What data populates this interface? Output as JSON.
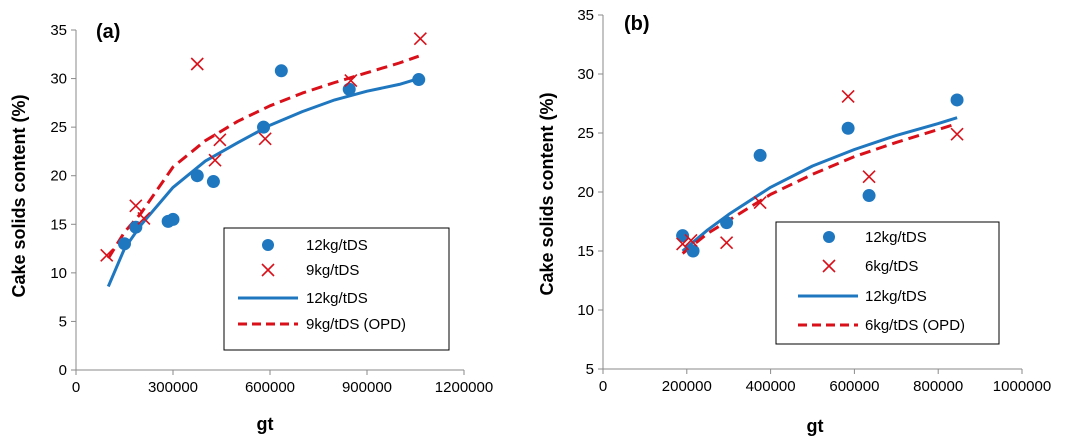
{
  "colors": {
    "blue": "#1f77c0",
    "red": "#d9101a",
    "axis": "#8a8a8a"
  },
  "chart_data": [
    {
      "type": "scatter",
      "panel_label": "(a)",
      "xlabel": "gt",
      "ylabel": "Cake solids content (%)",
      "xlim": [
        0,
        1200000
      ],
      "ylim": [
        0,
        35
      ],
      "xticks": [
        0,
        300000,
        600000,
        900000,
        1200000
      ],
      "xtick_labels": [
        "0",
        "300000",
        "600000",
        "900000",
        "1200000"
      ],
      "yticks": [
        0,
        5,
        10,
        15,
        20,
        25,
        30,
        35
      ],
      "ytick_labels": [
        "0",
        "5",
        "10",
        "15",
        "20",
        "25",
        "30",
        "35"
      ],
      "legend_position": "bottom-right",
      "series": [
        {
          "name": "12kg/tDS",
          "kind": "points",
          "marker": "circle",
          "color": "#1f77c0",
          "x": [
            150000,
            185000,
            285000,
            300000,
            375000,
            425000,
            580000,
            635000,
            845000,
            1060000
          ],
          "y": [
            13.0,
            14.7,
            15.3,
            15.5,
            20.0,
            19.4,
            25.0,
            30.8,
            28.9,
            29.9
          ]
        },
        {
          "name": "9kg/tDS",
          "kind": "points",
          "marker": "x",
          "color": "#d9101a",
          "x": [
            95000,
            185000,
            210000,
            375000,
            430000,
            445000,
            585000,
            850000,
            1065000
          ],
          "y": [
            11.8,
            16.9,
            15.6,
            31.5,
            21.6,
            23.7,
            23.8,
            29.8,
            34.1
          ]
        },
        {
          "name": "12kg/tDS",
          "kind": "fit",
          "style": "solid",
          "color": "#1f77c0",
          "x": [
            100000,
            150000,
            200000,
            300000,
            400000,
            500000,
            600000,
            700000,
            800000,
            900000,
            1000000,
            1060000
          ],
          "y": [
            8.6,
            12.5,
            14.9,
            18.8,
            21.5,
            23.4,
            25.2,
            26.6,
            27.8,
            28.7,
            29.4,
            30.0
          ]
        },
        {
          "name": "9kg/tDS (OPD)",
          "kind": "fit",
          "style": "dashed",
          "color": "#d9101a",
          "x": [
            100000,
            150000,
            200000,
            300000,
            400000,
            500000,
            600000,
            700000,
            800000,
            900000,
            1000000,
            1060000
          ],
          "y": [
            11.5,
            14.2,
            16.1,
            20.9,
            23.6,
            25.6,
            27.2,
            28.5,
            29.6,
            30.6,
            31.6,
            32.3
          ]
        }
      ]
    },
    {
      "type": "scatter",
      "panel_label": "(b)",
      "xlabel": "gt",
      "ylabel": "Cake solids content (%)",
      "xlim": [
        0,
        1000000
      ],
      "ylim": [
        5,
        35
      ],
      "xticks": [
        0,
        200000,
        400000,
        600000,
        800000,
        1000000
      ],
      "xtick_labels": [
        "0",
        "200000",
        "400000",
        "600000",
        "800000",
        "1000000"
      ],
      "yticks": [
        5,
        10,
        15,
        20,
        25,
        30,
        35
      ],
      "ytick_labels": [
        "5",
        "10",
        "15",
        "20",
        "25",
        "30",
        "35"
      ],
      "legend_position": "bottom-right",
      "series": [
        {
          "name": "12kg/tDS",
          "kind": "points",
          "marker": "circle",
          "color": "#1f77c0",
          "x": [
            190000,
            215000,
            295000,
            375000,
            585000,
            635000,
            845000
          ],
          "y": [
            16.3,
            15.0,
            17.4,
            23.1,
            25.4,
            19.7,
            27.8
          ]
        },
        {
          "name": "6kg/tDS",
          "kind": "points",
          "marker": "x",
          "color": "#d9101a",
          "x": [
            190000,
            210000,
            295000,
            375000,
            585000,
            635000,
            845000
          ],
          "y": [
            15.6,
            15.9,
            15.7,
            19.1,
            28.1,
            21.3,
            24.9
          ]
        },
        {
          "name": "12kg/tDS",
          "kind": "fit",
          "style": "solid",
          "color": "#1f77c0",
          "x": [
            190000,
            250000,
            300000,
            400000,
            500000,
            600000,
            700000,
            800000,
            845000
          ],
          "y": [
            15.0,
            16.8,
            18.1,
            20.4,
            22.2,
            23.6,
            24.8,
            25.8,
            26.3
          ]
        },
        {
          "name": "6kg/tDS (OPD)",
          "kind": "fit",
          "style": "dashed",
          "color": "#d9101a",
          "x": [
            190000,
            250000,
            300000,
            400000,
            500000,
            600000,
            700000,
            800000,
            845000
          ],
          "y": [
            14.8,
            16.5,
            17.6,
            19.8,
            21.5,
            23.0,
            24.2,
            25.3,
            25.8
          ]
        }
      ]
    }
  ]
}
